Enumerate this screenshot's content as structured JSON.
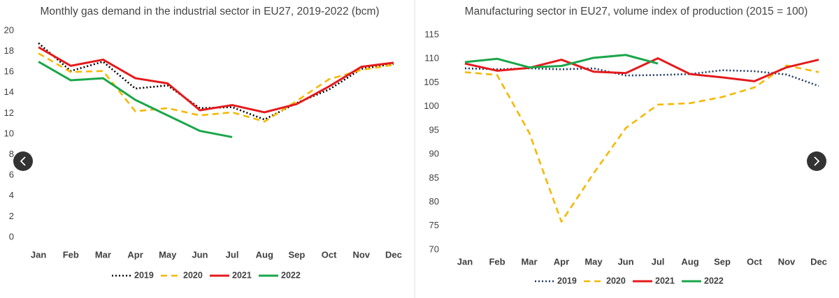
{
  "chart_data": [
    {
      "type": "line",
      "title": "Monthly gas demand in the industrial sector in EU27, 2019-2022 (bcm)",
      "categories": [
        "Jan",
        "Feb",
        "Mar",
        "Apr",
        "May",
        "Jun",
        "Jul",
        "Aug",
        "Sep",
        "Oct",
        "Nov",
        "Dec"
      ],
      "ylim": [
        0,
        20
      ],
      "yticks": [
        0,
        2,
        4,
        6,
        8,
        10,
        12,
        14,
        16,
        18,
        20
      ],
      "grid": false,
      "legend": "bottom",
      "series": [
        {
          "name": "2019",
          "color": "#000000",
          "dash": "dotted",
          "values": [
            18.8,
            16.1,
            17.0,
            14.4,
            14.7,
            12.5,
            12.6,
            11.4,
            13.0,
            14.3,
            16.3,
            16.8
          ]
        },
        {
          "name": "2020",
          "color": "#f5b800",
          "dash": "dashed",
          "values": [
            17.8,
            16.0,
            16.1,
            12.2,
            12.5,
            11.8,
            12.1,
            11.2,
            13.2,
            15.3,
            16.2,
            16.7
          ]
        },
        {
          "name": "2021",
          "color": "#e41a1c",
          "dash": "solid",
          "values": [
            18.4,
            16.6,
            17.2,
            15.4,
            14.9,
            12.3,
            12.8,
            12.1,
            12.9,
            14.6,
            16.5,
            16.9
          ]
        },
        {
          "name": "2022",
          "color": "#1aa64a",
          "dash": "solid",
          "values": [
            17.0,
            15.2,
            15.4,
            13.3,
            11.8,
            10.3,
            9.7,
            null,
            null,
            null,
            null,
            null
          ]
        }
      ]
    },
    {
      "type": "line",
      "title": "Manufacturing sector in EU27, volume index of production (2015 = 100)",
      "categories": [
        "Jan",
        "Feb",
        "Mar",
        "Apr",
        "May",
        "Jun",
        "Jul",
        "Aug",
        "Sep",
        "Oct",
        "Nov",
        "Dec"
      ],
      "ylim": [
        70,
        115
      ],
      "yticks": [
        70,
        75,
        80,
        85,
        90,
        95,
        100,
        105,
        110,
        115
      ],
      "grid": false,
      "legend": "bottom",
      "series": [
        {
          "name": "2019",
          "color": "#1f3864",
          "dash": "dotted",
          "values": [
            108,
            107.8,
            108,
            107.8,
            108,
            106.5,
            106.6,
            106.8,
            107.6,
            107.4,
            106.7,
            104.3
          ]
        },
        {
          "name": "2020",
          "color": "#f5b800",
          "dash": "dashed",
          "values": [
            107.2,
            106.6,
            94.5,
            75.9,
            86,
            95.5,
            100.4,
            100.7,
            102,
            104,
            108.6,
            107.2
          ]
        },
        {
          "name": "2021",
          "color": "#e41a1c",
          "dash": "solid",
          "values": [
            109,
            107.5,
            108.1,
            109.8,
            107.3,
            107,
            110.1,
            106.8,
            106.1,
            105.3,
            108.2,
            109.8
          ]
        },
        {
          "name": "2022",
          "color": "#1aa64a",
          "dash": "solid",
          "values": [
            109.3,
            110,
            108.2,
            108.5,
            110.2,
            110.8,
            109,
            null,
            null,
            null,
            null,
            null
          ]
        }
      ]
    }
  ]
}
